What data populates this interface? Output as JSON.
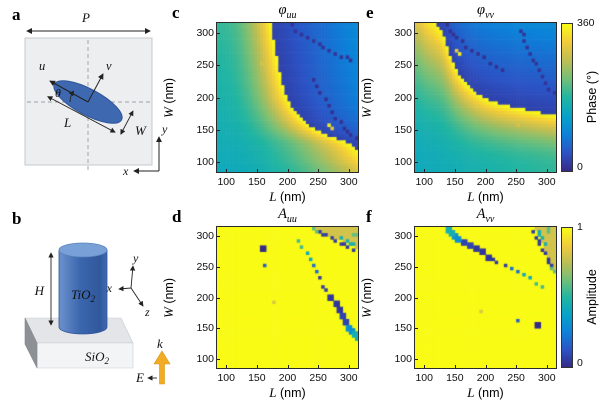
{
  "panel_a": {
    "letter": "a",
    "labels": {
      "period": "P",
      "u": "u",
      "v": "v",
      "theta": "θ",
      "length": "L",
      "width": "W",
      "x": "x",
      "y": "y"
    }
  },
  "panel_b": {
    "letter": "b",
    "labels": {
      "height": "H",
      "pillar": "TiO",
      "pillar_sub": "2",
      "substrate": "SiO",
      "substrate_sub": "2",
      "x": "x",
      "y": "y",
      "z": "z",
      "k": "k",
      "E": "E"
    }
  },
  "chart_data": [
    {
      "panel": "c",
      "type": "heatmap",
      "title_symbol": "φ",
      "title_sub": "uu",
      "xlabel_var": "L",
      "xlabel_unit": " (nm)",
      "ylabel_var": "W",
      "ylabel_unit": " (nm)",
      "x_ticks": [
        "100",
        "150",
        "200",
        "250",
        "300"
      ],
      "y_ticks": [
        "100",
        "150",
        "200",
        "250",
        "300"
      ],
      "x_tick_values": [
        100,
        150,
        200,
        250,
        300
      ],
      "y_tick_values": [
        100,
        150,
        200,
        250,
        300
      ],
      "x_range": [
        85,
        315
      ],
      "y_range": [
        85,
        315
      ],
      "value_label": "Phase (°)",
      "value_range": [
        0,
        360
      ],
      "model": "phase",
      "transpose": false
    },
    {
      "panel": "e",
      "type": "heatmap",
      "title_symbol": "φ",
      "title_sub": "vv",
      "xlabel_var": "L",
      "xlabel_unit": " (nm)",
      "ylabel_var": "W",
      "ylabel_unit": " (nm)",
      "x_ticks": [
        "100",
        "150",
        "200",
        "250",
        "300"
      ],
      "y_ticks": [
        "100",
        "150",
        "200",
        "250",
        "300"
      ],
      "x_tick_values": [
        100,
        150,
        200,
        250,
        300
      ],
      "y_tick_values": [
        100,
        150,
        200,
        250,
        300
      ],
      "x_range": [
        85,
        315
      ],
      "y_range": [
        85,
        315
      ],
      "value_label": "Phase (°)",
      "value_range": [
        0,
        360
      ],
      "model": "phase",
      "transpose": true
    },
    {
      "panel": "d",
      "type": "heatmap",
      "title_symbol": "A",
      "title_sub": "uu",
      "xlabel_var": "L",
      "xlabel_unit": " (nm)",
      "ylabel_var": "W",
      "ylabel_unit": " (nm)",
      "x_ticks": [
        "100",
        "150",
        "200",
        "250",
        "300"
      ],
      "y_ticks": [
        "100",
        "150",
        "200",
        "250",
        "300"
      ],
      "x_tick_values": [
        100,
        150,
        200,
        250,
        300
      ],
      "y_tick_values": [
        100,
        150,
        200,
        250,
        300
      ],
      "x_range": [
        85,
        315
      ],
      "y_range": [
        85,
        315
      ],
      "value_label": "Amplitude",
      "value_range": [
        0,
        1
      ],
      "model": "amplitude",
      "transpose": false
    },
    {
      "panel": "f",
      "type": "heatmap",
      "title_symbol": "A",
      "title_sub": "vv",
      "xlabel_var": "L",
      "xlabel_unit": " (nm)",
      "ylabel_var": "W",
      "ylabel_unit": " (nm)",
      "x_ticks": [
        "100",
        "150",
        "200",
        "250",
        "300"
      ],
      "y_ticks": [
        "100",
        "150",
        "200",
        "250",
        "300"
      ],
      "x_tick_values": [
        100,
        150,
        200,
        250,
        300
      ],
      "y_tick_values": [
        100,
        150,
        200,
        250,
        300
      ],
      "x_range": [
        85,
        315
      ],
      "y_range": [
        85,
        315
      ],
      "value_label": "Amplitude",
      "value_range": [
        0,
        1
      ],
      "model": "amplitude",
      "transpose": true
    }
  ],
  "models": {
    "phase": {
      "phi0": [
        150,
        190
      ],
      "power": 2,
      "boundary_W_L": [
        [
          90,
          358
        ],
        [
          100,
          338
        ],
        [
          110,
          325
        ],
        [
          120,
          315
        ],
        [
          130,
          300
        ],
        [
          140,
          272
        ],
        [
          150,
          248
        ],
        [
          160,
          232
        ],
        [
          170,
          221
        ],
        [
          180,
          212
        ],
        [
          190,
          205
        ],
        [
          200,
          199
        ],
        [
          220,
          192
        ],
        [
          240,
          187
        ],
        [
          260,
          183
        ],
        [
          280,
          179
        ],
        [
          310,
          174
        ]
      ],
      "after_base": 25,
      "after_slope": 0.55,
      "dots": [
        {
          "pts": [
            [
              205,
              310
            ],
            [
              214,
              304
            ],
            [
              223,
              298
            ],
            [
              232,
              292
            ],
            [
              241,
              287
            ],
            [
              250,
              282
            ],
            [
              259,
              277
            ],
            [
              268,
              272
            ],
            [
              277,
              268
            ],
            [
              286,
              264
            ],
            [
              295,
              261
            ],
            [
              304,
              258
            ]
          ],
          "v": 0.03,
          "s": 1
        },
        {
          "pts": [
            [
              240,
              228
            ],
            [
              247,
              217
            ],
            [
              254,
              206
            ],
            [
              261,
              196
            ],
            [
              267,
              187
            ],
            [
              273,
              178
            ],
            [
              279,
              169
            ],
            [
              285,
              161
            ],
            [
              291,
              154
            ],
            [
              297,
              147
            ],
            [
              304,
              141
            ],
            [
              310,
              136
            ]
          ],
          "v": 0.02,
          "s": 1
        },
        {
          "pts": [
            [
              266,
              158
            ]
          ],
          "v": 0.97,
          "s": 1
        },
        {
          "pts": [
            [
              271,
              153
            ]
          ],
          "v": 0.85,
          "s": 1
        },
        {
          "pts": [
            [
              158,
              251
            ]
          ],
          "v": 0.8,
          "s": 1
        }
      ]
    },
    "amplitude": {
      "base": 1.0,
      "corner": {
        "L_start": 246,
        "W_at_start": 310,
        "slope": 0.42,
        "v": 0.8
      },
      "dots": [
        {
          "pts": [
            [
              218,
              292
            ],
            [
              224,
              283
            ]
          ],
          "v": 0.55,
          "s": 1
        },
        {
          "pts": [
            [
              230,
              272
            ],
            [
              236,
              261
            ]
          ],
          "v": 0.4,
          "s": 1
        },
        {
          "pts": [
            [
              241,
              251
            ],
            [
              247,
              240
            ]
          ],
          "v": 0.2,
          "s": 1
        },
        {
          "pts": [
            [
              252,
              230
            ],
            [
              258,
              219
            ],
            [
              263,
              210
            ]
          ],
          "v": 0.05,
          "s": 1
        },
        {
          "pts": [
            [
              269,
              200
            ],
            [
              275,
              190
            ],
            [
              281,
              180
            ]
          ],
          "v": 0.04,
          "s": 2
        },
        {
          "pts": [
            [
              287,
              170
            ],
            [
              292,
              161
            ]
          ],
          "v": 0.08,
          "s": 2
        },
        {
          "pts": [
            [
              297,
              153
            ],
            [
              302,
              147
            ]
          ],
          "v": 0.3,
          "s": 2
        },
        {
          "pts": [
            [
              306,
              142
            ],
            [
              310,
              138
            ]
          ],
          "v": 0.45,
          "s": 2
        },
        {
          "pts": [
            [
              155,
              281
            ]
          ],
          "v": 0.0,
          "s": 2
        },
        {
          "pts": [
            [
              161,
              251
            ]
          ],
          "v": 0.15,
          "s": 1
        },
        {
          "pts": [
            [
              178,
              191
            ]
          ],
          "v": 0.82,
          "s": 1
        },
        {
          "pts": [
            [
              250,
              308
            ],
            [
              257,
              304
            ],
            [
              264,
              300
            ],
            [
              271,
              296
            ],
            [
              278,
              292
            ],
            [
              285,
              288
            ],
            [
              292,
              285
            ],
            [
              299,
              282
            ],
            [
              306,
              279
            ]
          ],
          "v": 0.05,
          "s": 1
        },
        {
          "pts": [
            [
              288,
              296
            ],
            [
              295,
              292
            ],
            [
              302,
              288
            ],
            [
              308,
              285
            ]
          ],
          "v": 0.45,
          "s": 1
        },
        {
          "pts": [
            [
              306,
              300
            ],
            [
              310,
              304
            ]
          ],
          "v": 0.6,
          "s": 1
        },
        {
          "pts": [
            [
              243,
              310
            ],
            [
              247,
              309
            ]
          ],
          "v": 0.6,
          "s": 1
        }
      ]
    }
  },
  "colormap": {
    "name": "parula",
    "anchors": [
      [
        0,
        "#352a87"
      ],
      [
        0.125,
        "#2c53c5"
      ],
      [
        0.25,
        "#0d81d9"
      ],
      [
        0.375,
        "#07a3c8"
      ],
      [
        0.5,
        "#21b5a2"
      ],
      [
        0.625,
        "#71bf79"
      ],
      [
        0.75,
        "#bcbe54"
      ],
      [
        0.875,
        "#f2cb3a"
      ],
      [
        1,
        "#f9fb15"
      ]
    ]
  },
  "colorbars": {
    "phase": {
      "label": "Phase (°)",
      "top_tick": "360",
      "bottom_tick": "0"
    },
    "amplitude": {
      "label": "Amplitude",
      "top_tick": "1",
      "bottom_tick": "0"
    }
  },
  "colors": {
    "ellipse_fill": "#3e68b0",
    "ellipse_edge": "#2f549a",
    "cylinder_body": "#3a66ae",
    "cylinder_top": "#7aa0d8",
    "k_arrow": "#f2ab25",
    "square_fill": "#edeef0",
    "square_edge": "#c5c9cd",
    "slab_top": "#e3e5e8",
    "slab_front": "#f3f4f5",
    "slab_side": "#8d9196"
  }
}
